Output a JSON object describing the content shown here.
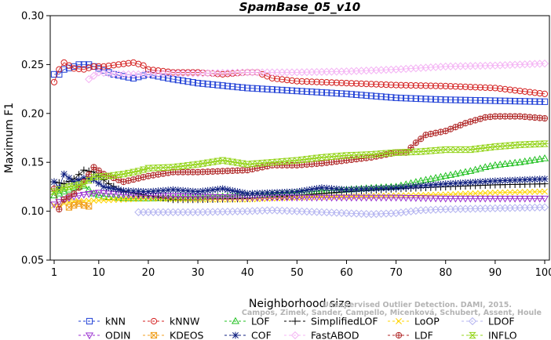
{
  "chart_data": {
    "type": "line",
    "title": "SpamBase_05_v10",
    "xlabel": "Neighborhood size",
    "ylabel": "Maximum F1",
    "xlim": [
      1,
      100
    ],
    "ylim": [
      0.05,
      0.3
    ],
    "xticks": [
      1,
      10,
      20,
      30,
      40,
      50,
      60,
      70,
      80,
      90,
      100
    ],
    "yticks": [
      0.05,
      0.1,
      0.15,
      0.2,
      0.25,
      0.3
    ],
    "ytick_labels": [
      "0.05",
      "0.10",
      "0.15",
      "0.20",
      "0.25",
      "0.30"
    ],
    "grid": false,
    "legend_position": "bottom",
    "watermark": [
      "Campos, Zimek, Sander, Campello, Micenková, Schubert, Assent, Houle",
      "Unsupervised Outlier Detection. DAMI, 2015."
    ],
    "series": [
      {
        "name": "kNN",
        "color": "#1f3fd6",
        "marker": "square",
        "points": [
          [
            1,
            0.24
          ],
          [
            2,
            0.24
          ],
          [
            3,
            0.245
          ],
          [
            5,
            0.248
          ],
          [
            6,
            0.25
          ],
          [
            7,
            0.25
          ],
          [
            8,
            0.25
          ],
          [
            10,
            0.246
          ],
          [
            13,
            0.24
          ],
          [
            15,
            0.238
          ],
          [
            17,
            0.236
          ],
          [
            20,
            0.24
          ],
          [
            25,
            0.235
          ],
          [
            30,
            0.231
          ],
          [
            40,
            0.226
          ],
          [
            50,
            0.223
          ],
          [
            60,
            0.22
          ],
          [
            70,
            0.216
          ],
          [
            80,
            0.214
          ],
          [
            90,
            0.213
          ],
          [
            100,
            0.212
          ]
        ]
      },
      {
        "name": "kNNW",
        "color": "#d42020",
        "marker": "circle",
        "points": [
          [
            1,
            0.232
          ],
          [
            2,
            0.245
          ],
          [
            3,
            0.252
          ],
          [
            5,
            0.246
          ],
          [
            7,
            0.245
          ],
          [
            9,
            0.248
          ],
          [
            11,
            0.248
          ],
          [
            14,
            0.25
          ],
          [
            17,
            0.252
          ],
          [
            19,
            0.249
          ],
          [
            20,
            0.245
          ],
          [
            25,
            0.242
          ],
          [
            30,
            0.242
          ],
          [
            35,
            0.24
          ],
          [
            40,
            0.242
          ],
          [
            42,
            0.242
          ],
          [
            45,
            0.236
          ],
          [
            50,
            0.233
          ],
          [
            60,
            0.231
          ],
          [
            70,
            0.229
          ],
          [
            80,
            0.228
          ],
          [
            90,
            0.226
          ],
          [
            100,
            0.22
          ]
        ]
      },
      {
        "name": "LOF",
        "color": "#22c022",
        "marker": "triangle-up",
        "points": [
          [
            1,
            0.116
          ],
          [
            3,
            0.12
          ],
          [
            5,
            0.124
          ],
          [
            7,
            0.126
          ],
          [
            9,
            0.118
          ],
          [
            11,
            0.115
          ],
          [
            15,
            0.113
          ],
          [
            20,
            0.113
          ],
          [
            30,
            0.114
          ],
          [
            40,
            0.116
          ],
          [
            50,
            0.119
          ],
          [
            60,
            0.122
          ],
          [
            66,
            0.124
          ],
          [
            70,
            0.125
          ],
          [
            75,
            0.131
          ],
          [
            80,
            0.136
          ],
          [
            85,
            0.141
          ],
          [
            88,
            0.145
          ],
          [
            90,
            0.147
          ],
          [
            95,
            0.15
          ],
          [
            100,
            0.154
          ]
        ]
      },
      {
        "name": "SimplifiedLOF",
        "color": "#000000",
        "marker": "plus",
        "points": [
          [
            1,
            0.13
          ],
          [
            3,
            0.128
          ],
          [
            5,
            0.133
          ],
          [
            7,
            0.142
          ],
          [
            9,
            0.14
          ],
          [
            12,
            0.128
          ],
          [
            15,
            0.12
          ],
          [
            20,
            0.116
          ],
          [
            25,
            0.112
          ],
          [
            30,
            0.112
          ],
          [
            40,
            0.113
          ],
          [
            50,
            0.116
          ],
          [
            60,
            0.12
          ],
          [
            70,
            0.123
          ],
          [
            80,
            0.125
          ],
          [
            90,
            0.127
          ],
          [
            100,
            0.128
          ]
        ]
      },
      {
        "name": "LoOP",
        "color": "#ffd400",
        "marker": "x",
        "points": [
          [
            1,
            0.106
          ],
          [
            5,
            0.11
          ],
          [
            10,
            0.111
          ],
          [
            15,
            0.112
          ],
          [
            20,
            0.113
          ],
          [
            30,
            0.112
          ],
          [
            40,
            0.112
          ],
          [
            50,
            0.114
          ],
          [
            60,
            0.115
          ],
          [
            70,
            0.116
          ],
          [
            80,
            0.117
          ],
          [
            90,
            0.119
          ],
          [
            100,
            0.12
          ]
        ]
      },
      {
        "name": "LDOF",
        "color": "#b4b4f0",
        "marker": "diamond",
        "points": [
          [
            18,
            0.099
          ],
          [
            25,
            0.099
          ],
          [
            30,
            0.099
          ],
          [
            40,
            0.1
          ],
          [
            45,
            0.101
          ],
          [
            50,
            0.1
          ],
          [
            55,
            0.099
          ],
          [
            60,
            0.098
          ],
          [
            65,
            0.097
          ],
          [
            70,
            0.098
          ],
          [
            75,
            0.101
          ],
          [
            80,
            0.102
          ],
          [
            90,
            0.103
          ],
          [
            100,
            0.104
          ]
        ]
      },
      {
        "name": "ODIN",
        "color": "#9a30d0",
        "marker": "triangle-down",
        "points": [
          [
            1,
            0.107
          ],
          [
            3,
            0.112
          ],
          [
            5,
            0.115
          ],
          [
            7,
            0.117
          ],
          [
            10,
            0.119
          ],
          [
            15,
            0.117
          ],
          [
            20,
            0.116
          ],
          [
            30,
            0.115
          ],
          [
            40,
            0.114
          ],
          [
            50,
            0.114
          ],
          [
            60,
            0.114
          ],
          [
            70,
            0.114
          ],
          [
            80,
            0.113
          ],
          [
            90,
            0.113
          ],
          [
            100,
            0.113
          ]
        ]
      },
      {
        "name": "KDEOS",
        "color": "#f0a020",
        "marker": "square-x",
        "points": [
          [
            4,
            0.104
          ],
          [
            5,
            0.106
          ],
          [
            6,
            0.108
          ],
          [
            7,
            0.106
          ],
          [
            8,
            0.105
          ]
        ]
      },
      {
        "name": "COF",
        "color": "#102080",
        "marker": "asterisk",
        "points": [
          [
            1,
            0.13
          ],
          [
            2,
            0.124
          ],
          [
            3,
            0.138
          ],
          [
            5,
            0.13
          ],
          [
            7,
            0.134
          ],
          [
            9,
            0.132
          ],
          [
            11,
            0.125
          ],
          [
            15,
            0.121
          ],
          [
            20,
            0.12
          ],
          [
            25,
            0.122
          ],
          [
            30,
            0.12
          ],
          [
            35,
            0.123
          ],
          [
            40,
            0.118
          ],
          [
            50,
            0.12
          ],
          [
            55,
            0.124
          ],
          [
            60,
            0.122
          ],
          [
            65,
            0.123
          ],
          [
            70,
            0.124
          ],
          [
            80,
            0.128
          ],
          [
            90,
            0.131
          ],
          [
            100,
            0.133
          ]
        ]
      },
      {
        "name": "FastABOD",
        "color": "#f4b4f4",
        "marker": "diamond",
        "points": [
          [
            8,
            0.235
          ],
          [
            10,
            0.242
          ],
          [
            14,
            0.24
          ],
          [
            18,
            0.24
          ],
          [
            25,
            0.241
          ],
          [
            30,
            0.241
          ],
          [
            40,
            0.242
          ],
          [
            50,
            0.242
          ],
          [
            60,
            0.243
          ],
          [
            65,
            0.244
          ],
          [
            70,
            0.245
          ],
          [
            80,
            0.248
          ],
          [
            90,
            0.249
          ],
          [
            100,
            0.251
          ]
        ]
      },
      {
        "name": "LDF",
        "color": "#b02828",
        "marker": "circle-plus",
        "points": [
          [
            1,
            0.123
          ],
          [
            2,
            0.102
          ],
          [
            3,
            0.112
          ],
          [
            5,
            0.118
          ],
          [
            7,
            0.13
          ],
          [
            9,
            0.145
          ],
          [
            11,
            0.138
          ],
          [
            15,
            0.13
          ],
          [
            20,
            0.136
          ],
          [
            25,
            0.14
          ],
          [
            30,
            0.14
          ],
          [
            35,
            0.141
          ],
          [
            40,
            0.142
          ],
          [
            45,
            0.147
          ],
          [
            50,
            0.147
          ],
          [
            55,
            0.149
          ],
          [
            60,
            0.152
          ],
          [
            65,
            0.155
          ],
          [
            70,
            0.16
          ],
          [
            72,
            0.16
          ],
          [
            74,
            0.17
          ],
          [
            76,
            0.178
          ],
          [
            80,
            0.182
          ],
          [
            84,
            0.19
          ],
          [
            88,
            0.196
          ],
          [
            90,
            0.197
          ],
          [
            95,
            0.197
          ],
          [
            100,
            0.195
          ]
        ]
      },
      {
        "name": "INFLO",
        "color": "#94d41a",
        "marker": "hourglass",
        "points": [
          [
            1,
            0.12
          ],
          [
            3,
            0.124
          ],
          [
            5,
            0.126
          ],
          [
            7,
            0.128
          ],
          [
            9,
            0.135
          ],
          [
            12,
            0.136
          ],
          [
            15,
            0.138
          ],
          [
            18,
            0.141
          ],
          [
            20,
            0.144
          ],
          [
            25,
            0.145
          ],
          [
            30,
            0.148
          ],
          [
            35,
            0.152
          ],
          [
            40,
            0.148
          ],
          [
            45,
            0.15
          ],
          [
            50,
            0.152
          ],
          [
            55,
            0.155
          ],
          [
            60,
            0.157
          ],
          [
            65,
            0.158
          ],
          [
            70,
            0.16
          ],
          [
            75,
            0.161
          ],
          [
            80,
            0.163
          ],
          [
            85,
            0.163
          ],
          [
            90,
            0.166
          ],
          [
            95,
            0.168
          ],
          [
            100,
            0.169
          ]
        ]
      }
    ]
  }
}
